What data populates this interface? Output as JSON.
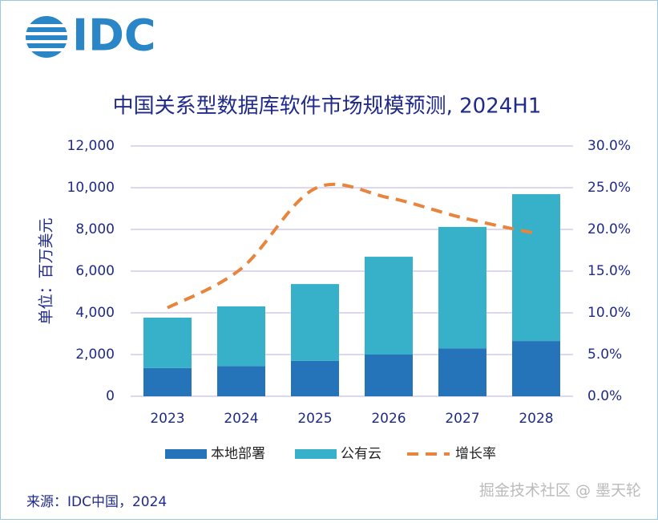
{
  "logo": "IDC",
  "source": "来源：IDC中国，2024",
  "watermark": "掘金技术社区 @ 墨天轮",
  "chart_data": {
    "type": "bar",
    "title": "中国关系型数据库软件市场规模预测, 2024H1",
    "y_label": "单位：百万美元",
    "categories": [
      "2023",
      "2024",
      "2025",
      "2026",
      "2027",
      "2028"
    ],
    "stacked": true,
    "grid": true,
    "ylim": [
      0,
      12000
    ],
    "yticks": [
      0,
      {
        "value": 2000,
        "label": "2,000"
      },
      {
        "value": 4000,
        "label": "4,000"
      },
      {
        "value": 6000,
        "label": "6,000"
      },
      {
        "value": 8000,
        "label": "8,000"
      },
      {
        "value": 10000,
        "label": "10,000"
      },
      {
        "value": 12000,
        "label": "12,000"
      }
    ],
    "y2lim": [
      0,
      30
    ],
    "y2ticks": [
      {
        "value": 0,
        "label": "0.0%"
      },
      {
        "value": 5,
        "label": "5.0%"
      },
      {
        "value": 10,
        "label": "10.0%"
      },
      {
        "value": 15,
        "label": "15.0%"
      },
      {
        "value": 20,
        "label": "20.0%"
      },
      {
        "value": 25,
        "label": "25.0%"
      },
      {
        "value": 30,
        "label": "30.0%"
      }
    ],
    "legend": "bottom",
    "series": [
      {
        "name": "本地部署",
        "color": "#2574b9",
        "values": [
          1350,
          1450,
          1700,
          2000,
          2300,
          2650
        ]
      },
      {
        "name": "公有云",
        "color": "#37b0c9",
        "values": [
          2420,
          2860,
          3680,
          4690,
          5820,
          7040
        ]
      },
      {
        "name": "增长率",
        "type": "line",
        "axis": "y2",
        "dashed": true,
        "color": "#e8843c",
        "values": [
          10.6,
          15.3,
          24.9,
          23.8,
          21.4,
          19.5
        ]
      }
    ]
  }
}
